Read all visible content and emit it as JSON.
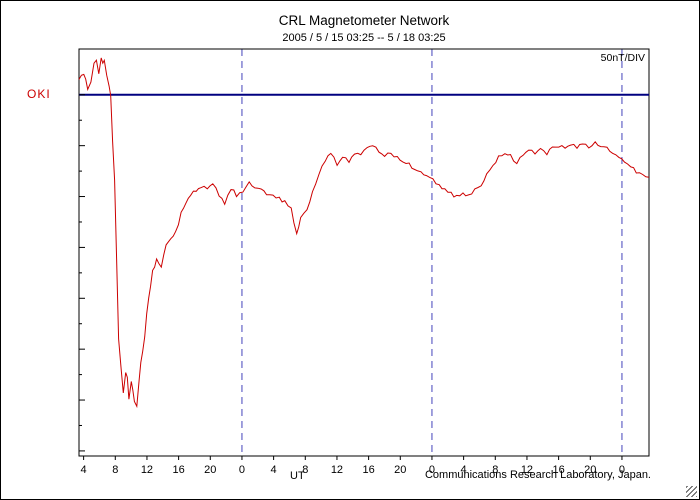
{
  "header": {
    "title": "CRL Magnetometer Network",
    "subtitle": "2005 / 5 / 15  03:25 -- 5 / 18  03:25"
  },
  "chart_data": {
    "type": "line",
    "title": "CRL Magnetometer Network",
    "subtitle": "2005 / 5 / 15  03:25 -- 5 / 18  03:25",
    "station": "OKI",
    "scale_label": "50nT/DIV",
    "xlabel": "UT",
    "credit": "Communications Research Laboratory, Japan.",
    "x_hours_range": [
      0,
      72
    ],
    "first_tick_hour": 0.5833,
    "tick_interval_hours": 4,
    "x_tick_labels": [
      "4",
      "8",
      "12",
      "16",
      "20",
      "0",
      "4",
      "8",
      "12",
      "16",
      "20",
      "0",
      "4",
      "8",
      "12",
      "16",
      "20",
      "0"
    ],
    "day_boundaries_hours": [
      20.5833,
      44.5833,
      68.5833
    ],
    "nT_per_div": 50,
    "ylim_nT": [
      -355,
      45
    ],
    "baseline_nT": 0,
    "baseline_color": "#000080",
    "grid_color": "#4444bb",
    "axis_color": "#000000",
    "series": [
      {
        "name": "OKI",
        "color": "#cc0000",
        "points": [
          [
            0,
            15
          ],
          [
            0.6,
            21
          ],
          [
            1.1,
            8
          ],
          [
            1.5,
            13
          ],
          [
            1.9,
            30
          ],
          [
            2.2,
            33
          ],
          [
            2.5,
            18
          ],
          [
            2.8,
            36
          ],
          [
            3.0,
            30
          ],
          [
            3.2,
            36
          ],
          [
            3.5,
            23
          ],
          [
            3.8,
            10
          ],
          [
            4.0,
            -2
          ],
          [
            4.5,
            -87
          ],
          [
            5.0,
            -237
          ],
          [
            5.3,
            -265
          ],
          [
            5.6,
            -292
          ],
          [
            5.9,
            -270
          ],
          [
            6.1,
            -277
          ],
          [
            6.3,
            -302
          ],
          [
            6.6,
            -283
          ],
          [
            6.8,
            -287
          ],
          [
            7.0,
            -300
          ],
          [
            7.3,
            -305
          ],
          [
            7.6,
            -280
          ],
          [
            7.8,
            -267
          ],
          [
            8.3,
            -237
          ],
          [
            8.8,
            -197
          ],
          [
            9.3,
            -175
          ],
          [
            9.8,
            -162
          ],
          [
            10.4,
            -169
          ],
          [
            11.0,
            -147
          ],
          [
            11.6,
            -142
          ],
          [
            12.2,
            -135
          ],
          [
            12.9,
            -117
          ],
          [
            13.5,
            -107
          ],
          [
            14.1,
            -99
          ],
          [
            14.8,
            -93
          ],
          [
            15.4,
            -90
          ],
          [
            16.2,
            -93
          ],
          [
            16.9,
            -87
          ],
          [
            17.7,
            -99
          ],
          [
            18.4,
            -107
          ],
          [
            19.2,
            -92
          ],
          [
            19.9,
            -99
          ],
          [
            20.7,
            -95
          ],
          [
            21.5,
            -87
          ],
          [
            22.2,
            -91
          ],
          [
            23.0,
            -93
          ],
          [
            23.7,
            -97
          ],
          [
            24.5,
            -99
          ],
          [
            25.3,
            -102
          ],
          [
            26.0,
            -105
          ],
          [
            26.8,
            -112
          ],
          [
            27.5,
            -137
          ],
          [
            28.0,
            -122
          ],
          [
            28.8,
            -112
          ],
          [
            29.5,
            -97
          ],
          [
            30.3,
            -77
          ],
          [
            31.1,
            -65
          ],
          [
            31.8,
            -57
          ],
          [
            32.6,
            -69
          ],
          [
            33.3,
            -62
          ],
          [
            34.1,
            -65
          ],
          [
            34.8,
            -59
          ],
          [
            35.6,
            -57
          ],
          [
            36.4,
            -53
          ],
          [
            37.1,
            -49
          ],
          [
            37.9,
            -57
          ],
          [
            38.6,
            -60
          ],
          [
            39.4,
            -57
          ],
          [
            40.2,
            -62
          ],
          [
            40.9,
            -65
          ],
          [
            41.7,
            -69
          ],
          [
            42.4,
            -73
          ],
          [
            43.2,
            -77
          ],
          [
            43.9,
            -79
          ],
          [
            44.7,
            -83
          ],
          [
            45.5,
            -89
          ],
          [
            46.2,
            -93
          ],
          [
            47.0,
            -97
          ],
          [
            47.7,
            -100
          ],
          [
            48.5,
            -97
          ],
          [
            49.2,
            -99
          ],
          [
            50.0,
            -93
          ],
          [
            50.8,
            -89
          ],
          [
            51.5,
            -79
          ],
          [
            52.3,
            -69
          ],
          [
            53.0,
            -62
          ],
          [
            53.8,
            -57
          ],
          [
            54.5,
            -60
          ],
          [
            55.3,
            -67
          ],
          [
            56.1,
            -59
          ],
          [
            56.8,
            -55
          ],
          [
            57.6,
            -57
          ],
          [
            58.3,
            -54
          ],
          [
            59.1,
            -57
          ],
          [
            59.8,
            -52
          ],
          [
            60.6,
            -50
          ],
          [
            61.4,
            -53
          ],
          [
            62.1,
            -49
          ],
          [
            62.9,
            -52
          ],
          [
            63.6,
            -48
          ],
          [
            64.4,
            -51
          ],
          [
            65.2,
            -48
          ],
          [
            65.9,
            -50
          ],
          [
            66.7,
            -53
          ],
          [
            67.4,
            -57
          ],
          [
            68.2,
            -62
          ],
          [
            68.9,
            -65
          ],
          [
            69.7,
            -71
          ],
          [
            70.4,
            -75
          ],
          [
            71.2,
            -79
          ],
          [
            72,
            -81
          ]
        ]
      }
    ]
  }
}
